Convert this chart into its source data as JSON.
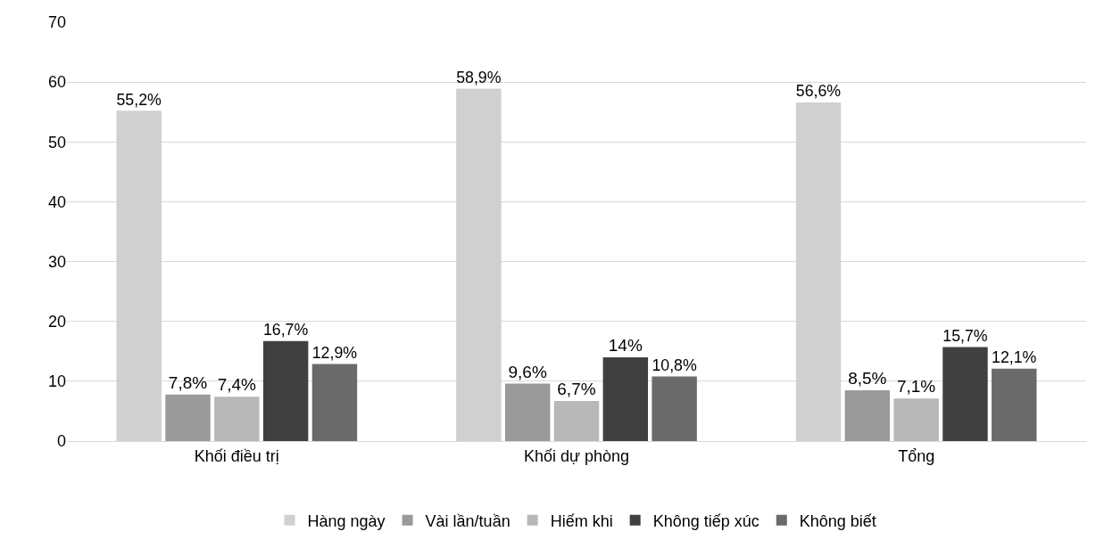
{
  "chart_data": {
    "type": "bar",
    "categories": [
      "Khối điều trị",
      "Khối dự phòng",
      "Tổng"
    ],
    "series": [
      {
        "name": "Hàng ngày",
        "color": "#d0d0d0",
        "values": [
          55.2,
          58.9,
          56.6
        ],
        "value_labels": [
          "55,2%",
          "58,9%",
          "56,6%"
        ]
      },
      {
        "name": "Vài lần/tuần",
        "color": "#9a9a9a",
        "values": [
          7.8,
          9.6,
          8.5
        ],
        "value_labels": [
          "7,8%",
          "9,6%",
          "8,5%"
        ]
      },
      {
        "name": "Hiếm khi",
        "color": "#b8b8b8",
        "values": [
          7.4,
          6.7,
          7.1
        ],
        "value_labels": [
          "7,4%",
          "6,7%",
          "7,1%"
        ]
      },
      {
        "name": "Không tiếp xúc",
        "color": "#404040",
        "values": [
          16.7,
          14,
          15.7
        ],
        "value_labels": [
          "16,7%",
          "14%",
          "15,7%"
        ]
      },
      {
        "name": "Không biết",
        "color": "#6a6a6a",
        "values": [
          12.9,
          10.8,
          12.1
        ],
        "value_labels": [
          "12,9%",
          "10,8%",
          "12,1%"
        ]
      }
    ],
    "ylim": [
      0,
      70
    ],
    "yticks": [
      0,
      10,
      20,
      30,
      40,
      50,
      60,
      70
    ],
    "grid": "y",
    "legend": "bottom"
  }
}
